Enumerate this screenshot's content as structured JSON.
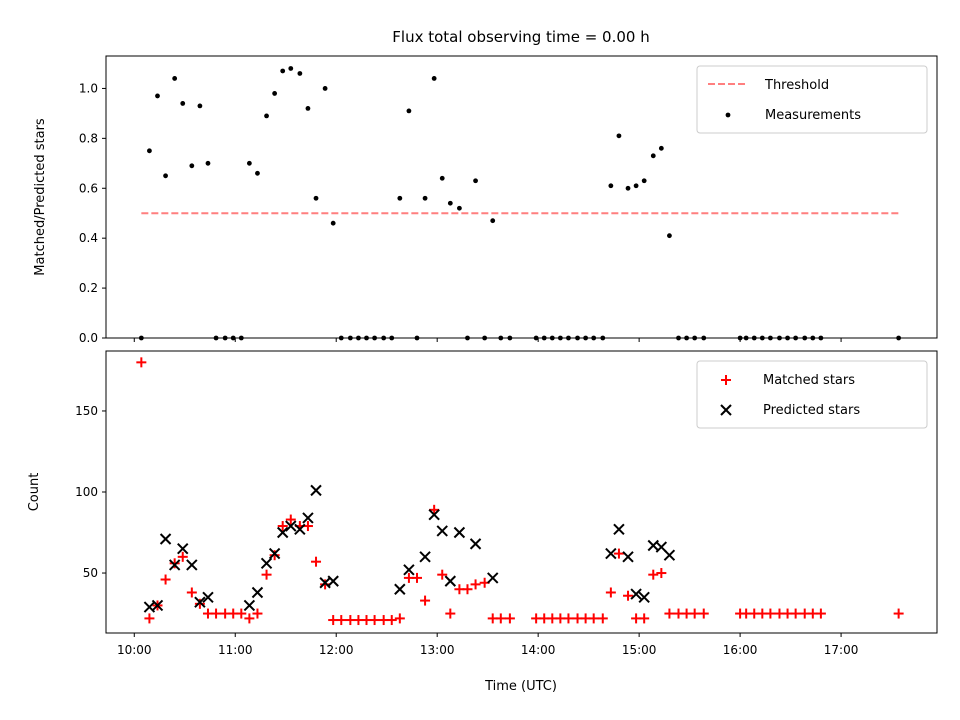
{
  "chart_data": [
    {
      "type": "scatter",
      "title": "Flux total observing time = 0.00 h",
      "xlabel": "",
      "ylabel": "Matched/Predicted stars",
      "xlim": [
        9.72,
        17.95
      ],
      "ylim": [
        0.0,
        1.13
      ],
      "yticks": [
        0.0,
        0.2,
        0.4,
        0.6,
        0.8,
        1.0
      ],
      "ytick_labels": [
        "0.0",
        "0.2",
        "0.4",
        "0.6",
        "0.8",
        "1.0"
      ],
      "legend_position": "top-right",
      "series": [
        {
          "name": "Threshold",
          "kind": "line",
          "style": "dashed",
          "color": "#ff7f7f",
          "x": [
            10.07,
            17.57
          ],
          "y": [
            0.5,
            0.5
          ]
        },
        {
          "name": "Measurements",
          "kind": "scatter",
          "marker": "dot",
          "color": "#000000",
          "x": [
            10.07,
            10.15,
            10.23,
            10.31,
            10.4,
            10.48,
            10.57,
            10.65,
            10.73,
            10.81,
            10.9,
            10.98,
            11.06,
            11.14,
            11.22,
            11.31,
            11.39,
            11.47,
            11.55,
            11.64,
            11.72,
            11.8,
            11.89,
            11.97,
            12.05,
            12.14,
            12.22,
            12.3,
            12.38,
            12.47,
            12.55,
            12.63,
            12.72,
            12.8,
            12.88,
            12.97,
            13.05,
            13.13,
            13.22,
            13.3,
            13.38,
            13.47,
            13.55,
            13.63,
            13.72,
            13.98,
            14.06,
            14.14,
            14.22,
            14.3,
            14.39,
            14.47,
            14.55,
            14.64,
            14.72,
            14.8,
            14.89,
            14.97,
            15.05,
            15.14,
            15.22,
            15.3,
            15.39,
            15.47,
            15.55,
            15.64,
            16.0,
            16.06,
            16.14,
            16.22,
            16.3,
            16.39,
            16.47,
            16.55,
            16.64,
            16.72,
            16.8,
            17.57
          ],
          "y": [
            0.0,
            0.75,
            0.97,
            0.65,
            1.04,
            0.94,
            0.69,
            0.93,
            0.7,
            0.0,
            0.0,
            0.0,
            0.0,
            0.7,
            0.66,
            0.89,
            0.98,
            1.07,
            1.08,
            1.06,
            0.92,
            0.56,
            1.0,
            0.46,
            0.0,
            0.0,
            0.0,
            0.0,
            0.0,
            0.0,
            0.0,
            0.56,
            0.91,
            0.0,
            0.56,
            1.04,
            0.64,
            0.54,
            0.52,
            0.0,
            0.63,
            0.0,
            0.47,
            0.0,
            0.0,
            0.0,
            0.0,
            0.0,
            0.0,
            0.0,
            0.0,
            0.0,
            0.0,
            0.0,
            0.61,
            0.81,
            0.6,
            0.61,
            0.63,
            0.73,
            0.76,
            0.41,
            0.0,
            0.0,
            0.0,
            0.0,
            0.0,
            0.0,
            0.0,
            0.0,
            0.0,
            0.0,
            0.0,
            0.0,
            0.0,
            0.0,
            0.0,
            0.0
          ]
        }
      ]
    },
    {
      "type": "scatter",
      "title": "",
      "xlabel": "Time (UTC)",
      "ylabel": "Count",
      "xlim": [
        9.72,
        17.95
      ],
      "ylim": [
        13,
        187
      ],
      "yticks": [
        50,
        100,
        150
      ],
      "ytick_labels": [
        "50",
        "100",
        "150"
      ],
      "xticks": [
        10,
        11,
        12,
        13,
        14,
        15,
        16,
        17
      ],
      "xtick_labels": [
        "10:00",
        "11:00",
        "12:00",
        "13:00",
        "14:00",
        "15:00",
        "16:00",
        "17:00"
      ],
      "legend_position": "top-right",
      "series": [
        {
          "name": "Matched stars",
          "kind": "scatter",
          "marker": "plus",
          "color": "#ff0000",
          "x": [
            10.07,
            10.15,
            10.23,
            10.31,
            10.4,
            10.48,
            10.57,
            10.65,
            10.73,
            10.81,
            10.9,
            10.98,
            11.06,
            11.14,
            11.22,
            11.31,
            11.39,
            11.47,
            11.55,
            11.64,
            11.72,
            11.8,
            11.89,
            11.97,
            12.05,
            12.14,
            12.22,
            12.3,
            12.38,
            12.47,
            12.55,
            12.63,
            12.72,
            12.8,
            12.88,
            12.97,
            13.05,
            13.13,
            13.22,
            13.3,
            13.38,
            13.47,
            13.55,
            13.63,
            13.72,
            13.98,
            14.06,
            14.14,
            14.22,
            14.3,
            14.39,
            14.47,
            14.55,
            14.64,
            14.72,
            14.8,
            14.89,
            14.97,
            15.05,
            15.14,
            15.22,
            15.3,
            15.39,
            15.47,
            15.55,
            15.64,
            16.0,
            16.06,
            16.14,
            16.22,
            16.3,
            16.39,
            16.47,
            16.55,
            16.64,
            16.72,
            16.8,
            17.57
          ],
          "y": [
            180,
            22,
            30,
            46,
            56,
            60,
            38,
            31,
            25,
            25,
            25,
            25,
            25,
            22,
            25,
            49,
            61,
            79,
            83,
            79,
            79,
            57,
            43,
            21,
            21,
            21,
            21,
            21,
            21,
            21,
            21,
            22,
            47,
            47,
            33,
            89,
            49,
            25,
            40,
            40,
            43,
            44,
            22,
            22,
            22,
            22,
            22,
            22,
            22,
            22,
            22,
            22,
            22,
            22,
            38,
            62,
            36,
            22,
            22,
            49,
            50,
            25,
            25,
            25,
            25,
            25,
            25,
            25,
            25,
            25,
            25,
            25,
            25,
            25,
            25,
            25,
            25,
            25
          ]
        },
        {
          "name": "Predicted stars",
          "kind": "scatter",
          "marker": "x",
          "color": "#000000",
          "x": [
            10.15,
            10.23,
            10.31,
            10.4,
            10.48,
            10.57,
            10.65,
            10.73,
            11.14,
            11.22,
            11.31,
            11.39,
            11.47,
            11.55,
            11.64,
            11.72,
            11.8,
            11.89,
            11.97,
            12.63,
            12.72,
            12.88,
            12.97,
            13.05,
            13.13,
            13.22,
            13.38,
            13.55,
            14.72,
            14.8,
            14.89,
            14.97,
            15.05,
            15.14,
            15.22,
            15.3
          ],
          "y": [
            29,
            30,
            71,
            55,
            65,
            55,
            32,
            35,
            30,
            38,
            56,
            62,
            75,
            79,
            77,
            84,
            101,
            44,
            45,
            40,
            52,
            60,
            86,
            76,
            45,
            75,
            68,
            47,
            62,
            77,
            60,
            37,
            35,
            67,
            66,
            61
          ]
        }
      ]
    }
  ]
}
